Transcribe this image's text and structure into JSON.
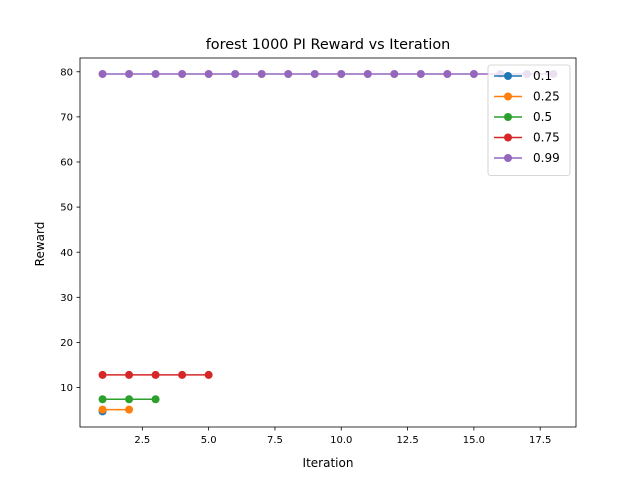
{
  "chart_data": {
    "type": "line",
    "title": "forest 1000 PI Reward vs Iteration",
    "xlabel": "Iteration",
    "ylabel": "Reward",
    "xlim": [
      0.15,
      18.85
    ],
    "ylim": [
      1.25,
      83.05
    ],
    "xticks": [
      2.5,
      5.0,
      7.5,
      10.0,
      12.5,
      15.0,
      17.5
    ],
    "xtick_labels": [
      "2.5",
      "5.0",
      "7.5",
      "10.0",
      "12.5",
      "15.0",
      "17.5"
    ],
    "yticks": [
      10,
      20,
      30,
      40,
      50,
      60,
      70,
      80
    ],
    "ytick_labels": [
      "10",
      "20",
      "30",
      "40",
      "50",
      "60",
      "70",
      "80"
    ],
    "legend_position": "top-right",
    "grid": false,
    "series": [
      {
        "name": "0.1",
        "color": "#1f77b4",
        "x": [
          1
        ],
        "y": [
          4.7
        ]
      },
      {
        "name": "0.25",
        "color": "#ff7f0e",
        "x": [
          1,
          2
        ],
        "y": [
          5.1,
          5.1
        ]
      },
      {
        "name": "0.5",
        "color": "#2ca02c",
        "x": [
          1,
          2,
          3
        ],
        "y": [
          7.4,
          7.4,
          7.4
        ]
      },
      {
        "name": "0.75",
        "color": "#d62728",
        "x": [
          1,
          2,
          3,
          4,
          5
        ],
        "y": [
          12.8,
          12.8,
          12.8,
          12.8,
          12.8
        ]
      },
      {
        "name": "0.99",
        "color": "#9467bd",
        "x": [
          1,
          2,
          3,
          4,
          5,
          6,
          7,
          8,
          9,
          10,
          11,
          12,
          13,
          14,
          15,
          16,
          17,
          18
        ],
        "y": [
          79.5,
          79.5,
          79.5,
          79.5,
          79.5,
          79.5,
          79.5,
          79.5,
          79.5,
          79.5,
          79.5,
          79.5,
          79.5,
          79.5,
          79.5,
          79.5,
          79.5,
          79.5
        ]
      }
    ]
  }
}
